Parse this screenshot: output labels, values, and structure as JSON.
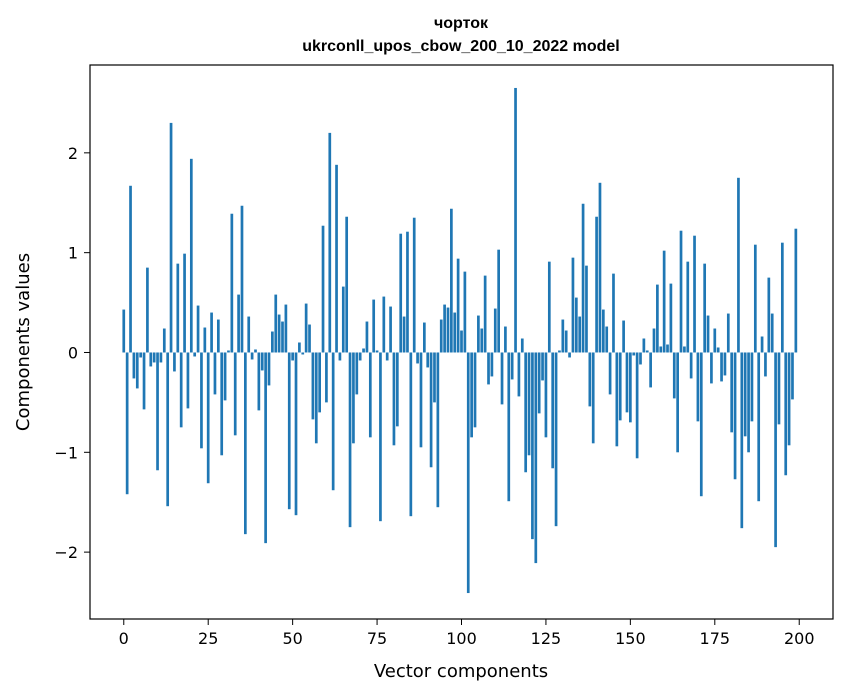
{
  "chart_data": {
    "type": "bar",
    "title": "чорток",
    "subtitle": "ukrconll_upos_cbow_200_10_2022 model",
    "xlabel": "Vector components",
    "ylabel": "Components values",
    "xlim": [
      -10,
      210
    ],
    "ylim": [
      -2.67,
      2.88
    ],
    "xticks": [
      0,
      25,
      50,
      75,
      100,
      125,
      150,
      175,
      200
    ],
    "yticks": [
      -2,
      -1,
      0,
      1,
      2
    ],
    "ytick_labels": [
      "−2",
      "−1",
      "0",
      "1",
      "2"
    ],
    "bar_color": "#1f77b4",
    "grid": false,
    "legend": "none",
    "x": [
      0,
      1,
      2,
      3,
      4,
      5,
      6,
      7,
      8,
      9,
      10,
      11,
      12,
      13,
      14,
      15,
      16,
      17,
      18,
      19,
      20,
      21,
      22,
      23,
      24,
      25,
      26,
      27,
      28,
      29,
      30,
      31,
      32,
      33,
      34,
      35,
      36,
      37,
      38,
      39,
      40,
      41,
      42,
      43,
      44,
      45,
      46,
      47,
      48,
      49,
      50,
      51,
      52,
      53,
      54,
      55,
      56,
      57,
      58,
      59,
      60,
      61,
      62,
      63,
      64,
      65,
      66,
      67,
      68,
      69,
      70,
      71,
      72,
      73,
      74,
      75,
      76,
      77,
      78,
      79,
      80,
      81,
      82,
      83,
      84,
      85,
      86,
      87,
      88,
      89,
      90,
      91,
      92,
      93,
      94,
      95,
      96,
      97,
      98,
      99,
      100,
      101,
      102,
      103,
      104,
      105,
      106,
      107,
      108,
      109,
      110,
      111,
      112,
      113,
      114,
      115,
      116,
      117,
      118,
      119,
      120,
      121,
      122,
      123,
      124,
      125,
      126,
      127,
      128,
      129,
      130,
      131,
      132,
      133,
      134,
      135,
      136,
      137,
      138,
      139,
      140,
      141,
      142,
      143,
      144,
      145,
      146,
      147,
      148,
      149,
      150,
      151,
      152,
      153,
      154,
      155,
      156,
      157,
      158,
      159,
      160,
      161,
      162,
      163,
      164,
      165,
      166,
      167,
      168,
      169,
      170,
      171,
      172,
      173,
      174,
      175,
      176,
      177,
      178,
      179,
      180,
      181,
      182,
      183,
      184,
      185,
      186,
      187,
      188,
      189,
      190,
      191,
      192,
      193,
      194,
      195,
      196,
      197,
      198,
      199
    ],
    "values": [
      0.43,
      -1.42,
      1.67,
      -0.26,
      -0.36,
      -0.05,
      -0.57,
      0.85,
      -0.14,
      -0.1,
      -1.18,
      -0.1,
      0.24,
      -1.54,
      2.3,
      -0.19,
      0.89,
      -0.75,
      0.99,
      -0.56,
      1.94,
      -0.04,
      0.47,
      -0.96,
      0.25,
      -1.31,
      0.4,
      -0.42,
      0.33,
      -1.03,
      -0.48,
      0.02,
      1.39,
      -0.83,
      0.58,
      1.47,
      -1.82,
      0.36,
      -0.07,
      0.03,
      -0.58,
      -0.18,
      -1.91,
      -0.33,
      0.21,
      0.58,
      0.38,
      0.31,
      0.48,
      -1.57,
      -0.08,
      -1.63,
      0.1,
      -0.02,
      0.49,
      0.28,
      -0.67,
      -0.91,
      -0.6,
      1.27,
      -0.5,
      2.2,
      -1.38,
      1.88,
      -0.08,
      0.66,
      1.36,
      -1.75,
      -0.91,
      -0.42,
      -0.08,
      0.04,
      0.31,
      -0.85,
      0.53,
      0.02,
      -1.69,
      0.56,
      -0.08,
      0.46,
      -0.93,
      -0.74,
      1.19,
      0.36,
      1.21,
      -1.64,
      1.35,
      -0.11,
      -0.95,
      0.3,
      -0.15,
      -1.15,
      -0.5,
      -1.55,
      0.33,
      0.48,
      0.45,
      1.44,
      0.4,
      0.94,
      0.22,
      0.81,
      -2.41,
      -0.85,
      -0.75,
      0.37,
      0.24,
      0.77,
      -0.32,
      -0.24,
      0.44,
      1.03,
      -0.52,
      0.26,
      -1.49,
      -0.27,
      2.65,
      -0.44,
      0.14,
      -1.2,
      -1.03,
      -1.87,
      -2.11,
      -0.61,
      -0.28,
      -0.85,
      0.91,
      -1.16,
      -1.74,
      0.02,
      0.33,
      0.22,
      -0.05,
      0.95,
      0.55,
      0.36,
      1.49,
      0.87,
      -0.54,
      -0.91,
      1.36,
      1.7,
      0.43,
      0.26,
      -0.42,
      0.79,
      -0.94,
      -0.68,
      0.32,
      -0.6,
      -0.7,
      -0.03,
      -1.06,
      -0.12,
      0.14,
      0.02,
      -0.35,
      0.24,
      0.68,
      0.06,
      1.02,
      0.08,
      0.69,
      -0.46,
      -1.0,
      1.22,
      0.06,
      0.91,
      -0.26,
      1.17,
      -0.69,
      -1.44,
      0.89,
      0.37,
      -0.31,
      0.24,
      0.05,
      -0.29,
      -0.23,
      0.39,
      -0.8,
      -1.27,
      1.75,
      -1.76,
      -0.84,
      -1.0,
      -0.69,
      1.08,
      -1.49,
      0.16,
      -0.24,
      0.75,
      0.39,
      -1.95,
      -0.72,
      1.1,
      -1.23,
      -0.93,
      -0.47,
      1.24
    ]
  }
}
